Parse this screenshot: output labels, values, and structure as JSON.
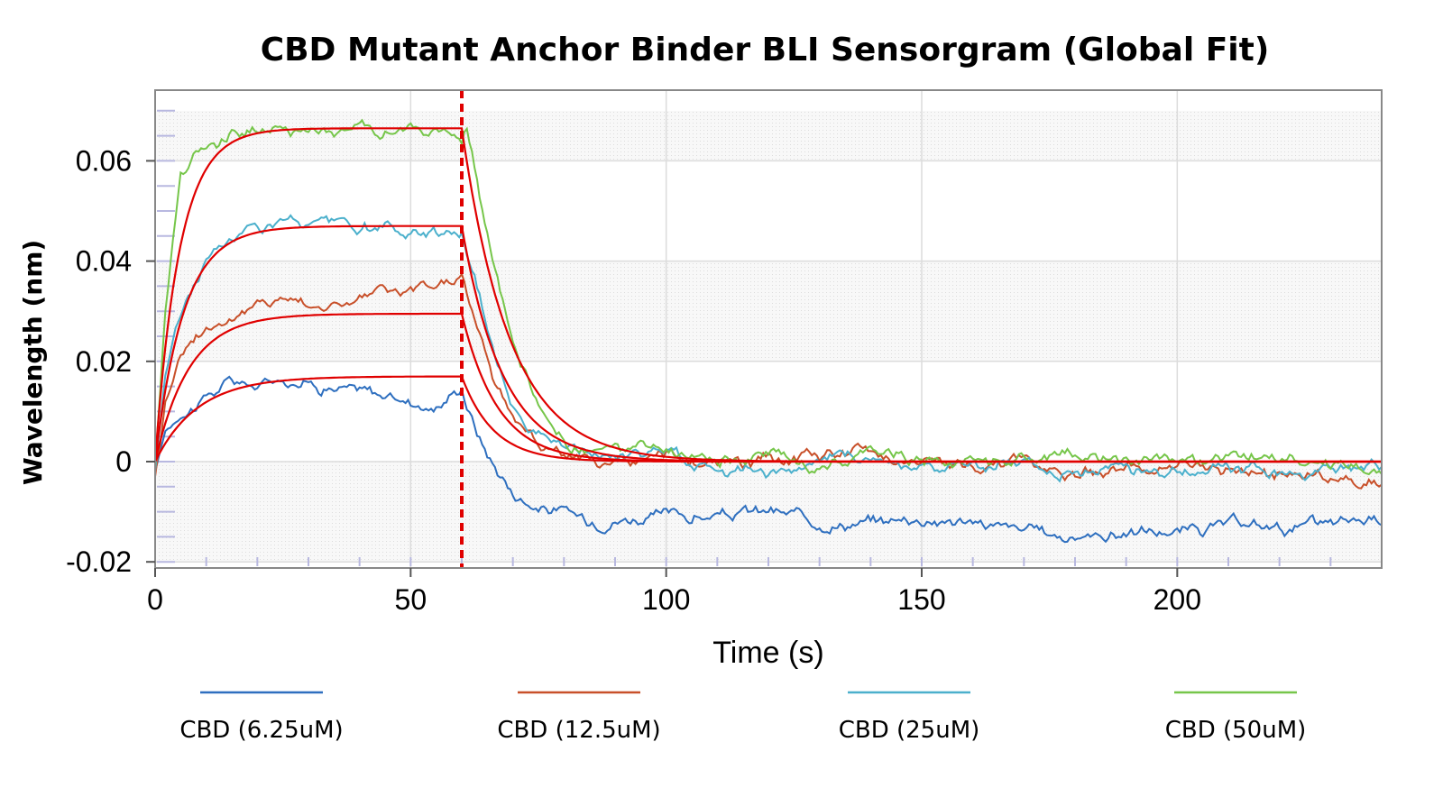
{
  "chart_data": {
    "type": "line",
    "title": "CBD Mutant Anchor Binder BLI Sensorgram (Global Fit)",
    "xlabel": "Time (s)",
    "ylabel": "Wavelength (nm)",
    "xlim": [
      0,
      240
    ],
    "ylim": [
      -0.02,
      0.07
    ],
    "xticks": [
      0,
      50,
      100,
      150,
      200
    ],
    "xtick_labels": [
      "0",
      "50",
      "100",
      "150",
      "200"
    ],
    "yticks": [
      -0.02,
      0,
      0.02,
      0.04,
      0.06
    ],
    "ytick_labels": [
      "-0.02",
      "0",
      "0.02",
      "0.04",
      "0.06"
    ],
    "association_end": 60,
    "fit_color": "#e00000",
    "legend_position": "bottom",
    "series": [
      {
        "name": "CBD (6.25uM)",
        "color": "#2e6fbf",
        "fit_plateau": 0.017,
        "baseline_after": -0.013,
        "x": [
          0,
          2,
          5,
          10,
          15,
          20,
          25,
          30,
          35,
          40,
          45,
          50,
          55,
          60,
          63,
          66,
          70,
          75,
          80,
          85,
          90,
          100,
          110,
          120,
          130,
          140,
          150,
          160,
          170,
          180,
          190,
          200,
          210,
          220,
          230,
          240
        ],
        "y": [
          -0.002,
          0.006,
          0.01,
          0.013,
          0.016,
          0.015,
          0.017,
          0.016,
          0.015,
          0.014,
          0.013,
          0.012,
          0.011,
          0.015,
          0.006,
          0.0,
          -0.006,
          -0.009,
          -0.01,
          -0.012,
          -0.011,
          -0.011,
          -0.011,
          -0.01,
          -0.012,
          -0.012,
          -0.011,
          -0.012,
          -0.014,
          -0.015,
          -0.014,
          -0.014,
          -0.013,
          -0.013,
          -0.013,
          -0.011
        ]
      },
      {
        "name": "CBD (12.5uM)",
        "color": "#c8502a",
        "fit_plateau": 0.0295,
        "baseline_after": -0.001,
        "x": [
          0,
          2,
          5,
          10,
          15,
          20,
          25,
          30,
          35,
          40,
          45,
          50,
          55,
          60,
          63,
          66,
          70,
          75,
          80,
          85,
          90,
          100,
          110,
          120,
          130,
          140,
          150,
          160,
          170,
          180,
          190,
          200,
          210,
          220,
          230,
          240
        ],
        "y": [
          -0.003,
          0.012,
          0.022,
          0.027,
          0.029,
          0.031,
          0.033,
          0.032,
          0.031,
          0.033,
          0.034,
          0.033,
          0.035,
          0.037,
          0.027,
          0.017,
          0.009,
          0.004,
          0.002,
          0.0,
          -0.001,
          0.001,
          -0.001,
          0.0,
          0.001,
          0.002,
          0.0,
          -0.001,
          0.0,
          -0.002,
          -0.001,
          -0.002,
          -0.001,
          -0.003,
          -0.003,
          -0.004
        ]
      },
      {
        "name": "CBD (25uM)",
        "color": "#4bb0cc",
        "fit_plateau": 0.047,
        "baseline_after": 0.0,
        "x": [
          0,
          2,
          5,
          10,
          15,
          20,
          25,
          30,
          35,
          40,
          45,
          50,
          55,
          60,
          63,
          66,
          70,
          75,
          80,
          85,
          90,
          100,
          110,
          120,
          130,
          140,
          150,
          160,
          170,
          180,
          190,
          200,
          210,
          220,
          230,
          240
        ],
        "y": [
          -0.002,
          0.018,
          0.03,
          0.04,
          0.045,
          0.047,
          0.048,
          0.047,
          0.047,
          0.046,
          0.046,
          0.045,
          0.046,
          0.046,
          0.035,
          0.022,
          0.012,
          0.006,
          0.003,
          0.001,
          0.001,
          0.002,
          -0.001,
          -0.002,
          0.0,
          0.001,
          -0.001,
          -0.001,
          0.0,
          -0.002,
          -0.001,
          -0.002,
          -0.002,
          -0.002,
          -0.002,
          -0.002
        ]
      },
      {
        "name": "CBD (50uM)",
        "color": "#76c64a",
        "fit_plateau": 0.0665,
        "baseline_after": 0.0,
        "x": [
          0,
          2,
          5,
          10,
          15,
          20,
          25,
          30,
          35,
          40,
          45,
          50,
          55,
          60,
          61,
          63,
          66,
          70,
          75,
          80,
          85,
          90,
          100,
          110,
          120,
          130,
          140,
          150,
          160,
          170,
          180,
          190,
          200,
          210,
          220,
          230,
          240
        ],
        "y": [
          -0.001,
          0.03,
          0.058,
          0.064,
          0.066,
          0.067,
          0.066,
          0.066,
          0.066,
          0.067,
          0.066,
          0.066,
          0.065,
          0.064,
          0.067,
          0.056,
          0.04,
          0.022,
          0.01,
          0.004,
          0.002,
          0.002,
          0.002,
          0.0,
          0.001,
          -0.001,
          0.003,
          0.001,
          0.0,
          0.0,
          0.001,
          0.0,
          0.001,
          0.0,
          0.0,
          -0.001,
          -0.001
        ]
      }
    ]
  }
}
